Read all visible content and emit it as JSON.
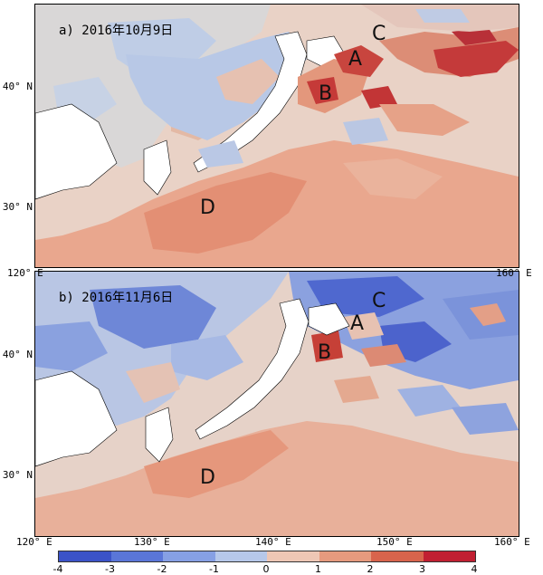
{
  "panels": [
    {
      "id": "a",
      "title": "a) 2016年10月9日",
      "letters": [
        "A",
        "B",
        "C",
        "D"
      ]
    },
    {
      "id": "b",
      "title": "b) 2016年11月6日",
      "letters": [
        "A",
        "B",
        "C",
        "D"
      ]
    }
  ],
  "y_axis": {
    "ticks": [
      "40° N",
      "30° N"
    ]
  },
  "x_axis": {
    "ticks": [
      "120° E",
      "130° E",
      "140° E",
      "150° E",
      "160° E"
    ]
  },
  "colorbar": {
    "ticks": [
      "-4",
      "-3",
      "-2",
      "-1",
      "0",
      "1",
      "2",
      "3",
      "4"
    ],
    "colors": [
      "#3b53c8",
      "#5a76d8",
      "#86a0e4",
      "#b6c8ea",
      "#dfe4ec",
      "#eec7b5",
      "#e69a7e",
      "#d8644c",
      "#c11f32"
    ]
  }
}
